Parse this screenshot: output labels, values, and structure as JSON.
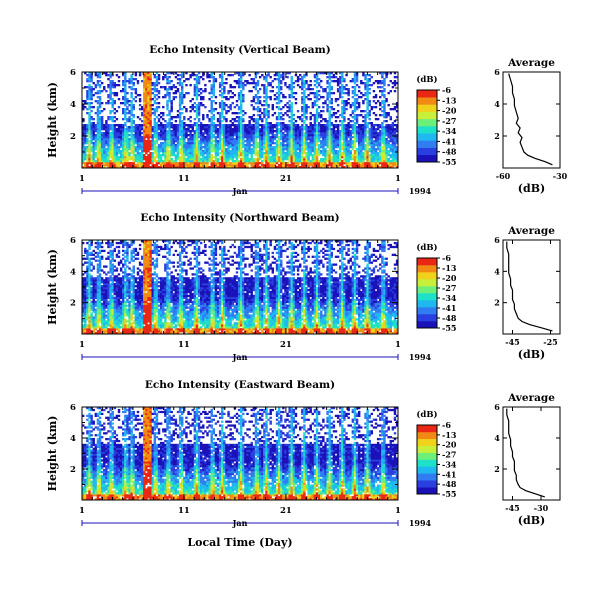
{
  "colors": {
    "colormap": [
      "#1a12b8",
      "#2a3fe0",
      "#2f7df0",
      "#1fb8f0",
      "#1fe0c8",
      "#6df07a",
      "#c8f03a",
      "#f0d21a",
      "#f08a14",
      "#e82814"
    ],
    "frame": "#000000",
    "time_axis": "#1a12b8"
  },
  "chart_data": [
    {
      "type": "heatmap",
      "title": "Echo Intensity (Vertical Beam)",
      "ylabel": "Height (km)",
      "xlabel": "",
      "x_ticks": [
        "1",
        "11",
        "21",
        "1"
      ],
      "x_sublabel": "Jan",
      "year_label": "1994",
      "ylim": [
        0,
        6
      ],
      "yticks": [
        2,
        4,
        6
      ],
      "colorbar": {
        "unit": "(dB)",
        "ticks": [
          -6,
          -13,
          -20,
          -27,
          -34,
          -41,
          -48,
          -55
        ],
        "range": [
          -55,
          -6
        ]
      },
      "average_profile": {
        "title": "Average",
        "xlabel": "(dB)",
        "xlim": [
          -60,
          -30
        ],
        "x_ticks": [
          -60,
          -30
        ],
        "ylim": [
          0,
          6
        ],
        "yticks": [
          2,
          4,
          6
        ],
        "x": [
          -34,
          -38,
          -43,
          -47,
          -49,
          -50,
          -51,
          -50,
          -52,
          -51,
          -53,
          -52,
          -53,
          -54,
          -54,
          -55,
          -55,
          -56,
          -57
        ],
        "y": [
          0.2,
          0.4,
          0.6,
          0.8,
          1.0,
          1.3,
          1.6,
          1.9,
          2.2,
          2.5,
          2.8,
          3.1,
          3.5,
          3.9,
          4.3,
          4.7,
          5.1,
          5.5,
          5.9
        ]
      }
    },
    {
      "type": "heatmap",
      "title": "Echo Intensity (Northward Beam)",
      "ylabel": "Height (km)",
      "xlabel": "",
      "x_ticks": [
        "1",
        "11",
        "21",
        "1"
      ],
      "x_sublabel": "Jan",
      "year_label": "1994",
      "ylim": [
        0,
        6
      ],
      "yticks": [
        2,
        4,
        6
      ],
      "colorbar": {
        "unit": "(dB)",
        "ticks": [
          -6,
          -13,
          -20,
          -27,
          -34,
          -41,
          -48,
          -55
        ],
        "range": [
          -55,
          -6
        ]
      },
      "average_profile": {
        "title": "Average",
        "xlabel": "(dB)",
        "xlim": [
          -50,
          -20
        ],
        "x_ticks": [
          -45,
          -25
        ],
        "ylim": [
          0,
          6
        ],
        "yticks": [
          2,
          4,
          6
        ],
        "x": [
          -24,
          -30,
          -36,
          -40,
          -42,
          -43,
          -44,
          -44,
          -45,
          -45,
          -45,
          -46,
          -46,
          -47,
          -47,
          -47,
          -47,
          -48,
          -48
        ],
        "y": [
          0.2,
          0.4,
          0.6,
          0.8,
          1.0,
          1.3,
          1.6,
          1.9,
          2.2,
          2.5,
          2.8,
          3.1,
          3.5,
          3.9,
          4.3,
          4.7,
          5.1,
          5.5,
          5.9
        ]
      }
    },
    {
      "type": "heatmap",
      "title": "Echo Intensity (Eastward Beam)",
      "ylabel": "Height (km)",
      "xlabel": "Local Time (Day)",
      "x_ticks": [
        "1",
        "11",
        "21",
        "1"
      ],
      "x_sublabel": "Jan",
      "year_label": "1994",
      "ylim": [
        0,
        6
      ],
      "yticks": [
        2,
        4,
        6
      ],
      "colorbar": {
        "unit": "(dB)",
        "ticks": [
          -6,
          -13,
          -20,
          -27,
          -34,
          -41,
          -48,
          -55
        ],
        "range": [
          -55,
          -6
        ]
      },
      "average_profile": {
        "title": "Average",
        "xlabel": "(dB)",
        "xlim": [
          -50,
          -20
        ],
        "x_ticks": [
          -45,
          -30
        ],
        "ylim": [
          0,
          6
        ],
        "yticks": [
          2,
          4,
          6
        ],
        "x": [
          -28,
          -33,
          -38,
          -41,
          -42,
          -43,
          -43,
          -44,
          -44,
          -44,
          -45,
          -45,
          -46,
          -46,
          -47,
          -47,
          -47,
          -48,
          -48
        ],
        "y": [
          0.2,
          0.4,
          0.6,
          0.8,
          1.0,
          1.3,
          1.6,
          1.9,
          2.2,
          2.5,
          2.8,
          3.1,
          3.5,
          3.9,
          4.3,
          4.7,
          5.1,
          5.5,
          5.9
        ]
      }
    }
  ]
}
